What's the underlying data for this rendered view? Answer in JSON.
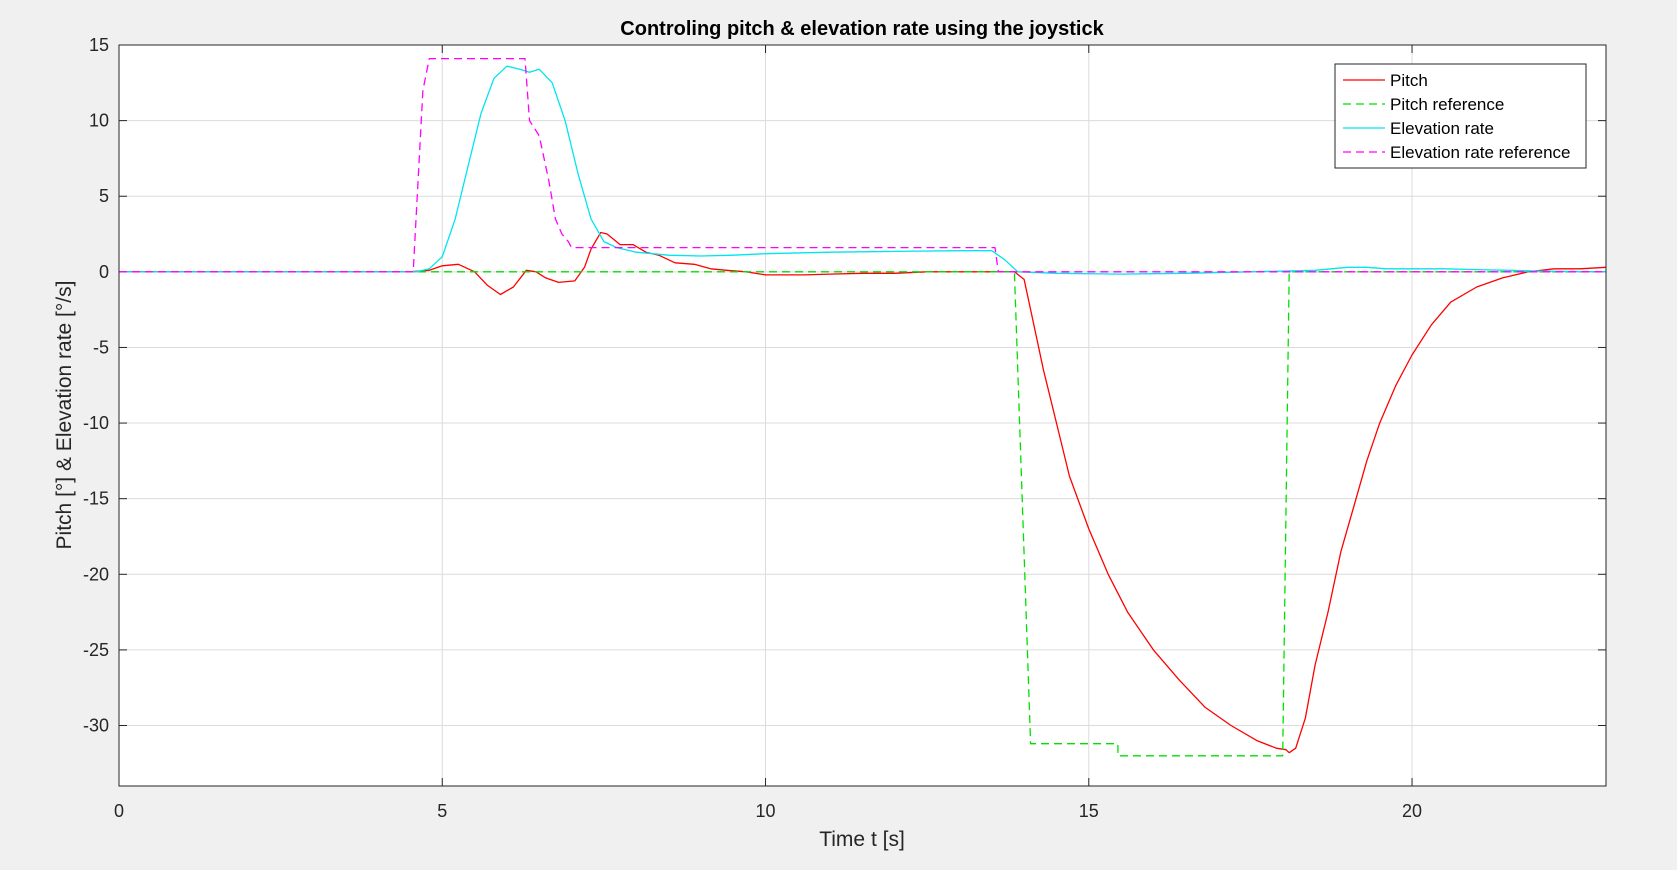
{
  "chart_data": {
    "type": "line",
    "title": "Controling pitch & elevation rate using the joystick",
    "xlabel": "Time t [s]",
    "ylabel": "Pitch [°] & Elevation rate [°/s]",
    "xlim": [
      0,
      23
    ],
    "ylim": [
      -34,
      15
    ],
    "xticks": [
      0,
      5,
      10,
      15,
      20
    ],
    "yticks": [
      15,
      10,
      5,
      0,
      -5,
      -10,
      -15,
      -20,
      -25,
      -30
    ],
    "grid": true,
    "legend_position": "top-right",
    "series": [
      {
        "name": "Pitch",
        "color": "#ff0000",
        "style": "solid",
        "points": [
          [
            0,
            0
          ],
          [
            4.5,
            0
          ],
          [
            4.8,
            0.1
          ],
          [
            5.0,
            0.4
          ],
          [
            5.25,
            0.5
          ],
          [
            5.5,
            0.0
          ],
          [
            5.7,
            -0.9
          ],
          [
            5.9,
            -1.5
          ],
          [
            6.1,
            -1.0
          ],
          [
            6.3,
            0.1
          ],
          [
            6.45,
            0.0
          ],
          [
            6.6,
            -0.4
          ],
          [
            6.8,
            -0.7
          ],
          [
            7.05,
            -0.6
          ],
          [
            7.2,
            0.3
          ],
          [
            7.3,
            1.5
          ],
          [
            7.45,
            2.6
          ],
          [
            7.55,
            2.5
          ],
          [
            7.75,
            1.8
          ],
          [
            7.95,
            1.8
          ],
          [
            8.15,
            1.3
          ],
          [
            8.35,
            1.1
          ],
          [
            8.6,
            0.6
          ],
          [
            8.9,
            0.5
          ],
          [
            9.15,
            0.2
          ],
          [
            9.4,
            0.1
          ],
          [
            9.7,
            0.0
          ],
          [
            10.0,
            -0.2
          ],
          [
            10.3,
            -0.2
          ],
          [
            10.6,
            -0.2
          ],
          [
            11.0,
            -0.15
          ],
          [
            11.5,
            -0.1
          ],
          [
            12.0,
            -0.1
          ],
          [
            12.5,
            0.0
          ],
          [
            13.0,
            0.0
          ],
          [
            13.5,
            0.0
          ],
          [
            13.85,
            0.0
          ],
          [
            14.0,
            -0.5
          ],
          [
            14.1,
            -2.5
          ],
          [
            14.3,
            -6.5
          ],
          [
            14.5,
            -10.0
          ],
          [
            14.7,
            -13.5
          ],
          [
            15.0,
            -17.0
          ],
          [
            15.3,
            -20.0
          ],
          [
            15.6,
            -22.5
          ],
          [
            16.0,
            -25.0
          ],
          [
            16.4,
            -27.0
          ],
          [
            16.8,
            -28.8
          ],
          [
            17.2,
            -30.0
          ],
          [
            17.6,
            -31.0
          ],
          [
            17.9,
            -31.5
          ],
          [
            18.05,
            -31.6
          ],
          [
            18.1,
            -31.8
          ],
          [
            18.2,
            -31.5
          ],
          [
            18.35,
            -29.5
          ],
          [
            18.5,
            -26.0
          ],
          [
            18.7,
            -22.5
          ],
          [
            18.9,
            -18.5
          ],
          [
            19.1,
            -15.5
          ],
          [
            19.3,
            -12.5
          ],
          [
            19.5,
            -10.0
          ],
          [
            19.75,
            -7.5
          ],
          [
            20.0,
            -5.5
          ],
          [
            20.3,
            -3.5
          ],
          [
            20.6,
            -2.0
          ],
          [
            21.0,
            -1.0
          ],
          [
            21.4,
            -0.4
          ],
          [
            21.8,
            0.0
          ],
          [
            22.2,
            0.2
          ],
          [
            22.6,
            0.2
          ],
          [
            23.0,
            0.3
          ]
        ]
      },
      {
        "name": "Pitch reference",
        "color": "#00e000",
        "style": "dashed",
        "points": [
          [
            0,
            0
          ],
          [
            13.85,
            0
          ],
          [
            14.1,
            -31.2
          ],
          [
            15.45,
            -31.2
          ],
          [
            15.45,
            -32.0
          ],
          [
            18.0,
            -32.0
          ],
          [
            18.1,
            0
          ],
          [
            23.0,
            0
          ]
        ]
      },
      {
        "name": "Elevation rate",
        "color": "#00e5ee",
        "style": "solid",
        "points": [
          [
            0,
            0
          ],
          [
            4.6,
            0
          ],
          [
            4.8,
            0.2
          ],
          [
            5.0,
            1.0
          ],
          [
            5.2,
            3.5
          ],
          [
            5.4,
            7.0
          ],
          [
            5.6,
            10.5
          ],
          [
            5.8,
            12.8
          ],
          [
            6.0,
            13.6
          ],
          [
            6.2,
            13.4
          ],
          [
            6.35,
            13.2
          ],
          [
            6.5,
            13.4
          ],
          [
            6.7,
            12.5
          ],
          [
            6.9,
            10.0
          ],
          [
            7.1,
            6.5
          ],
          [
            7.3,
            3.5
          ],
          [
            7.5,
            2.0
          ],
          [
            7.7,
            1.6
          ],
          [
            8.0,
            1.3
          ],
          [
            8.5,
            1.1
          ],
          [
            9.0,
            1.05
          ],
          [
            9.5,
            1.1
          ],
          [
            10.0,
            1.2
          ],
          [
            11.0,
            1.3
          ],
          [
            12.0,
            1.35
          ],
          [
            13.0,
            1.4
          ],
          [
            13.5,
            1.4
          ],
          [
            13.7,
            0.8
          ],
          [
            13.9,
            0.0
          ],
          [
            14.5,
            -0.1
          ],
          [
            15.5,
            -0.15
          ],
          [
            16.5,
            -0.1
          ],
          [
            17.5,
            0.0
          ],
          [
            18.5,
            0.1
          ],
          [
            19.0,
            0.3
          ],
          [
            19.3,
            0.3
          ],
          [
            19.6,
            0.2
          ],
          [
            20.0,
            0.2
          ],
          [
            20.5,
            0.2
          ],
          [
            21.0,
            0.15
          ],
          [
            21.5,
            0.1
          ],
          [
            22.0,
            0.05
          ],
          [
            23.0,
            0.0
          ]
        ]
      },
      {
        "name": "Elevation rate reference",
        "color": "#ff00ff",
        "style": "dashed",
        "points": [
          [
            0,
            0
          ],
          [
            4.55,
            0
          ],
          [
            4.7,
            12.0
          ],
          [
            4.8,
            14.1
          ],
          [
            6.28,
            14.1
          ],
          [
            6.35,
            10.0
          ],
          [
            6.5,
            9.0
          ],
          [
            6.65,
            6.0
          ],
          [
            6.75,
            3.5
          ],
          [
            6.85,
            2.5
          ],
          [
            6.95,
            2.0
          ],
          [
            7.0,
            1.6
          ],
          [
            13.55,
            1.6
          ],
          [
            13.6,
            0.0
          ],
          [
            23.0,
            0.0
          ]
        ]
      }
    ]
  }
}
